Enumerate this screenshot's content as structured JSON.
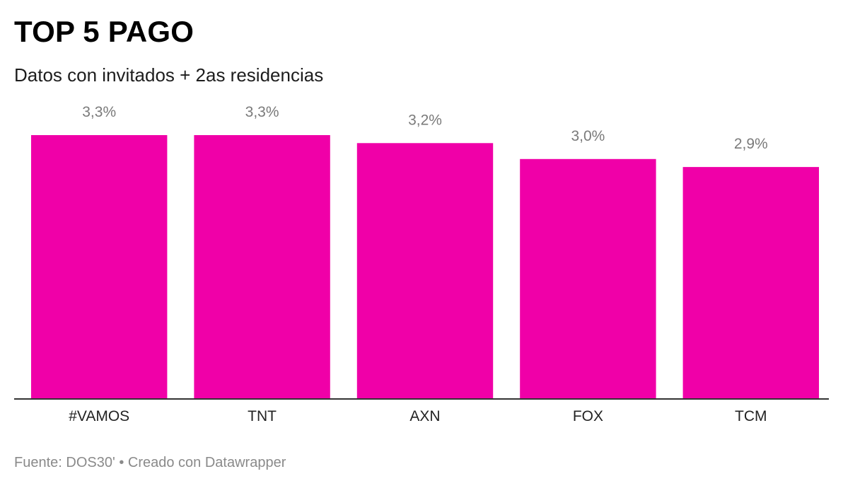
{
  "header": {
    "title": "TOP 5 PAGO",
    "subtitle": "Datos con invitados + 2as residencias"
  },
  "footer": {
    "text": "Fuente: DOS30' • Creado con Datawrapper"
  },
  "colors": {
    "bar": "#f000a8",
    "axis": "#333333"
  },
  "chart_data": {
    "type": "bar",
    "categories": [
      "#VAMOS",
      "TNT",
      "AXN",
      "FOX",
      "TCM"
    ],
    "values": [
      3.3,
      3.3,
      3.2,
      3.0,
      2.9
    ],
    "value_labels": [
      "3,3%",
      "3,3%",
      "3,2%",
      "3,0%",
      "2,9%"
    ],
    "ylim": [
      0,
      3.3
    ],
    "grid": false
  }
}
